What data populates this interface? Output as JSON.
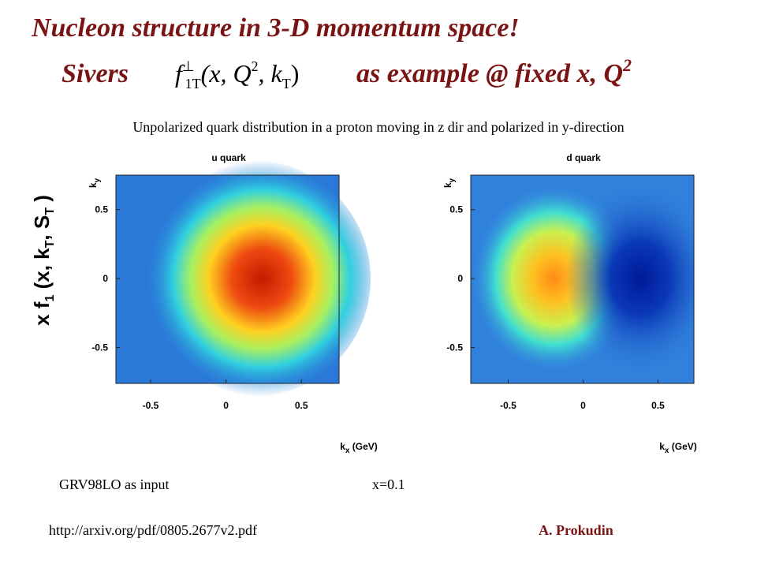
{
  "title": {
    "line1": "Nucleon structure in 3-D momentum space!",
    "sivers": "Sivers",
    "formula": [
      "f",
      "⊥",
      "1T",
      "(x, Q",
      "2",
      ", k",
      "T",
      ")"
    ],
    "rest": "as example @ fixed x, Q",
    "rest_sup": "2"
  },
  "subtitle": "Unpolarized quark distribution in a proton moving in z dir and polarized in y-direction",
  "y_quantity": [
    "x f",
    "1",
    " (x, k",
    "T",
    ", S",
    "T",
    " )"
  ],
  "panels": [
    {
      "title": "u quark",
      "xlim": [
        -0.73,
        0.75
      ],
      "ylim": [
        -0.76,
        0.75
      ],
      "xticks": [
        -0.5,
        0,
        0.5
      ],
      "yticks": [
        -0.5,
        0,
        0.5
      ],
      "xlabel": [
        "k",
        "x",
        " (GeV)"
      ],
      "ylabel": [
        "k",
        "y"
      ]
    },
    {
      "title": "d quark",
      "xlim": [
        -0.75,
        0.74
      ],
      "ylim": [
        -0.76,
        0.75
      ],
      "xticks": [
        -0.5,
        0,
        0.5
      ],
      "yticks": [
        -0.5,
        0,
        0.5
      ],
      "xlabel": [
        "k",
        "x",
        " (GeV)"
      ],
      "ylabel": [
        "k",
        "y"
      ]
    }
  ],
  "footer": {
    "input": "GRV98LO as input",
    "x": "x=0.1",
    "url": "http://arxiv.org/pdf/0805.2677v2.pdf",
    "author": "A. Prokudin"
  }
}
